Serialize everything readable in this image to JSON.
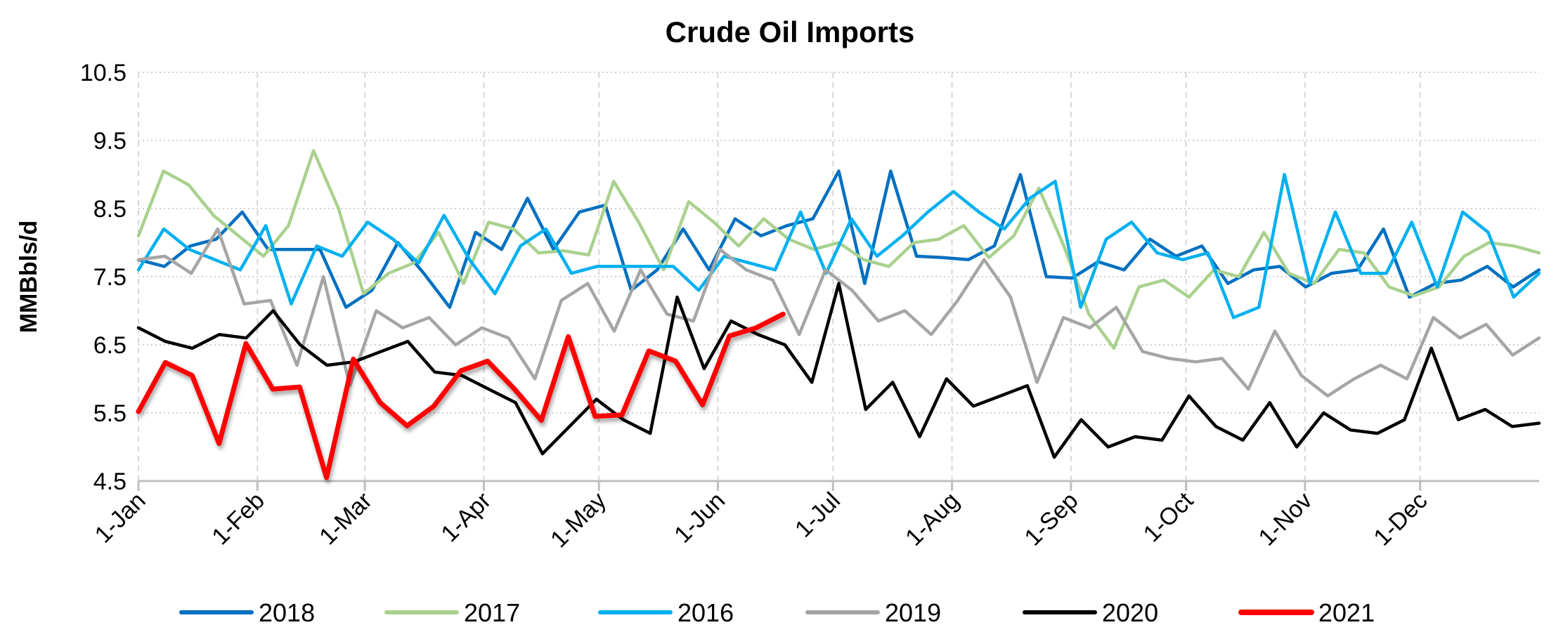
{
  "chart_data": {
    "type": "line",
    "title": "Crude Oil Imports",
    "xlabel": "",
    "ylabel": "MMBbls/d",
    "ylim": [
      4.5,
      10.5
    ],
    "yticks": [
      "4.5",
      "5.5",
      "6.5",
      "7.5",
      "8.5",
      "9.5",
      "10.5"
    ],
    "xlim_days": [
      0,
      365
    ],
    "xticks": [
      {
        "label": "1-Jan",
        "day": 0
      },
      {
        "label": "1-Feb",
        "day": 31
      },
      {
        "label": "1-Mar",
        "day": 59
      },
      {
        "label": "1-Apr",
        "day": 90
      },
      {
        "label": "1-May",
        "day": 120
      },
      {
        "label": "1-Jun",
        "day": 151
      },
      {
        "label": "1-Jul",
        "day": 181
      },
      {
        "label": "1-Aug",
        "day": 212
      },
      {
        "label": "1-Sep",
        "day": 243
      },
      {
        "label": "1-Oct",
        "day": 273
      },
      {
        "label": "1-Nov",
        "day": 304
      },
      {
        "label": "1-Dec",
        "day": 334
      }
    ],
    "grid": true,
    "legend_position": "bottom",
    "series": [
      {
        "name": "2018",
        "color": "#0070c0",
        "span_days": 365,
        "values": [
          7.75,
          7.65,
          7.95,
          8.05,
          8.45,
          7.9,
          7.9,
          7.9,
          7.05,
          7.3,
          8.0,
          7.55,
          7.05,
          8.15,
          7.9,
          8.65,
          7.9,
          8.45,
          8.55,
          7.3,
          7.6,
          8.2,
          7.6,
          8.35,
          8.1,
          8.25,
          8.35,
          9.05,
          7.4,
          9.05,
          7.8,
          7.78,
          7.75,
          7.95,
          9.0,
          7.5,
          7.48,
          7.72,
          7.6,
          8.05,
          7.8,
          7.95,
          7.4,
          7.6,
          7.65,
          7.35,
          7.55,
          7.6,
          8.2,
          7.2,
          7.4,
          7.45,
          7.65,
          7.35,
          7.6
        ]
      },
      {
        "name": "2017",
        "color": "#a9d18e",
        "span_days": 365,
        "values": [
          8.1,
          9.05,
          8.85,
          8.4,
          8.1,
          7.8,
          8.25,
          9.35,
          8.5,
          7.25,
          7.55,
          7.7,
          8.15,
          7.4,
          8.3,
          8.2,
          7.85,
          7.88,
          7.82,
          8.9,
          8.3,
          7.6,
          8.6,
          8.3,
          7.95,
          8.35,
          8.05,
          7.9,
          8.0,
          7.75,
          7.65,
          8.0,
          8.05,
          8.25,
          7.78,
          8.1,
          8.8,
          7.95,
          6.95,
          6.45,
          7.35,
          7.45,
          7.2,
          7.6,
          7.5,
          8.15,
          7.55,
          7.4,
          7.9,
          7.85,
          7.35,
          7.22,
          7.35,
          7.8,
          8.0,
          7.95,
          7.85
        ]
      },
      {
        "name": "2016",
        "color": "#00b0f0",
        "span_days": 365,
        "values": [
          7.6,
          8.2,
          7.9,
          7.75,
          7.6,
          8.25,
          7.1,
          7.95,
          7.8,
          8.3,
          8.05,
          7.7,
          8.4,
          7.75,
          7.25,
          7.95,
          8.2,
          7.55,
          7.65,
          7.65,
          7.65,
          7.65,
          7.3,
          7.8,
          7.7,
          7.6,
          8.45,
          7.55,
          8.35,
          7.8,
          8.1,
          8.45,
          8.75,
          8.45,
          8.2,
          8.65,
          8.9,
          7.05,
          8.05,
          8.3,
          7.85,
          7.75,
          7.85,
          6.9,
          7.05,
          9.0,
          7.4,
          8.45,
          7.55,
          7.55,
          8.3,
          7.35,
          8.45,
          8.15,
          7.2,
          7.55
        ]
      },
      {
        "name": "2019",
        "color": "#a5a5a5",
        "span_days": 365,
        "values": [
          7.75,
          7.8,
          7.55,
          8.2,
          7.1,
          7.15,
          6.2,
          7.5,
          5.9,
          7.0,
          6.75,
          6.9,
          6.5,
          6.75,
          6.6,
          6.0,
          7.15,
          7.4,
          6.7,
          7.6,
          6.95,
          6.85,
          7.9,
          7.6,
          7.45,
          6.65,
          7.6,
          7.3,
          6.85,
          7.0,
          6.65,
          7.15,
          7.75,
          7.2,
          5.95,
          6.9,
          6.75,
          7.05,
          6.4,
          6.3,
          6.25,
          6.3,
          5.85,
          6.7,
          6.05,
          5.75,
          6.0,
          6.2,
          6.0,
          6.9,
          6.6,
          6.8,
          6.35,
          6.6
        ]
      },
      {
        "name": "2020",
        "color": "#000000",
        "span_days": 365,
        "values": [
          6.75,
          6.55,
          6.45,
          6.65,
          6.6,
          7.0,
          6.5,
          6.2,
          6.25,
          6.4,
          6.55,
          6.1,
          6.05,
          5.85,
          5.65,
          4.9,
          5.3,
          5.7,
          5.4,
          5.2,
          7.2,
          6.15,
          6.85,
          6.65,
          6.5,
          5.95,
          7.4,
          5.55,
          5.95,
          5.15,
          6.0,
          5.6,
          5.75,
          5.9,
          4.85,
          5.4,
          5.0,
          5.15,
          5.1,
          5.75,
          5.3,
          5.1,
          5.65,
          5.0,
          5.5,
          5.25,
          5.2,
          5.4,
          6.45,
          5.4,
          5.55,
          5.3,
          5.35
        ]
      },
      {
        "name": "2021",
        "color": "#ff0000",
        "span_days": 168,
        "values": [
          5.52,
          6.24,
          6.05,
          5.05,
          6.52,
          5.85,
          5.88,
          4.55,
          6.29,
          5.65,
          5.31,
          5.6,
          6.12,
          6.26,
          5.85,
          5.39,
          6.62,
          5.45,
          5.47,
          6.41,
          6.26,
          5.62,
          6.63,
          6.75,
          6.95
        ]
      }
    ]
  }
}
